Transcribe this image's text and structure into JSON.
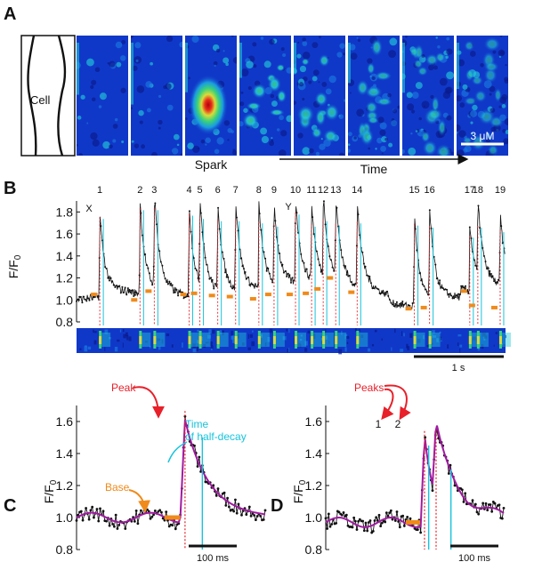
{
  "panel_labels": {
    "a": "A",
    "b": "B",
    "c": "C",
    "d": "D"
  },
  "panel_a": {
    "cell_label": "Cell",
    "spark_label": "Spark",
    "time_label": "Time",
    "scale_label": "3 μM",
    "colormap": [
      "#0a1a8c",
      "#1038c8",
      "#1a78e0",
      "#22c8d8",
      "#3ad27a",
      "#d8dc3a",
      "#e8301a",
      "#b00010"
    ]
  },
  "colors": {
    "trace": "#111111",
    "fit": "#a01aa0",
    "peak_line": "#e8202a",
    "halfdecay_line": "#16c4dc",
    "base_marker": "#f08a1a",
    "annotation_peak": "#e8202a",
    "annotation_halfdecay": "#16c4dc",
    "annotation_base": "#f08a1a"
  },
  "chart_data": [
    {
      "panel": "B",
      "type": "line",
      "ylabel": "F/F₀",
      "ylim": [
        0.8,
        1.9
      ],
      "yticks": [
        "0.8",
        "1.0",
        "1.2",
        "1.4",
        "1.6",
        "1.8"
      ],
      "scale_bar_label": "1 s",
      "event_numbers": [
        "1",
        "2",
        "3",
        "4",
        "5",
        "6",
        "7",
        "8",
        "9",
        "10",
        "11",
        "12",
        "13",
        "14",
        "15",
        "16",
        "17",
        "18",
        "19"
      ],
      "event_markers": {
        "X": "X",
        "Y": "Y"
      },
      "event_time_s": [
        0.26,
        0.71,
        0.87,
        1.26,
        1.38,
        1.58,
        1.78,
        2.04,
        2.21,
        2.45,
        2.63,
        2.76,
        2.9,
        3.14,
        3.78,
        3.95,
        4.4,
        4.49,
        4.74
      ],
      "event_peak": [
        1.72,
        1.8,
        1.8,
        1.75,
        1.72,
        1.7,
        1.7,
        1.68,
        1.65,
        1.76,
        1.65,
        1.7,
        1.66,
        1.68,
        1.66,
        1.64,
        1.55,
        1.64,
        1.6
      ],
      "event_base": [
        1.05,
        1.0,
        1.08,
        1.05,
        1.06,
        1.04,
        1.03,
        1.01,
        1.05,
        1.05,
        1.06,
        1.1,
        1.2,
        1.07,
        0.92,
        0.93,
        1.08,
        0.95,
        0.93
      ]
    },
    {
      "panel": "C",
      "type": "line",
      "ylabel": "F/F₀",
      "ylim": [
        0.8,
        1.7
      ],
      "yticks": [
        "0.8",
        "1.0",
        "1.2",
        "1.4",
        "1.6"
      ],
      "scale_bar_label": "100 ms",
      "annotations": {
        "peak": "Peak",
        "halfdecay_line1": "Time",
        "halfdecay_line2": "of half-decay",
        "base": "Base"
      },
      "baseline": 1.0,
      "peak": 1.61,
      "rise_ms": 330,
      "peak_ms": 345,
      "halfdecay_ms": 400
    },
    {
      "panel": "D",
      "type": "line",
      "ylabel": "F/F₀",
      "ylim": [
        0.8,
        1.7
      ],
      "yticks": [
        "0.8",
        "1.0",
        "1.2",
        "1.4",
        "1.6"
      ],
      "scale_bar_label": "100 ms",
      "annotations": {
        "peaks": "Peaks",
        "peak1": "1",
        "peak2": "2"
      },
      "baseline": 0.97,
      "peak1": 1.54,
      "peak2": 1.54,
      "peak1_ms": 333,
      "peak2_ms": 372
    }
  ]
}
